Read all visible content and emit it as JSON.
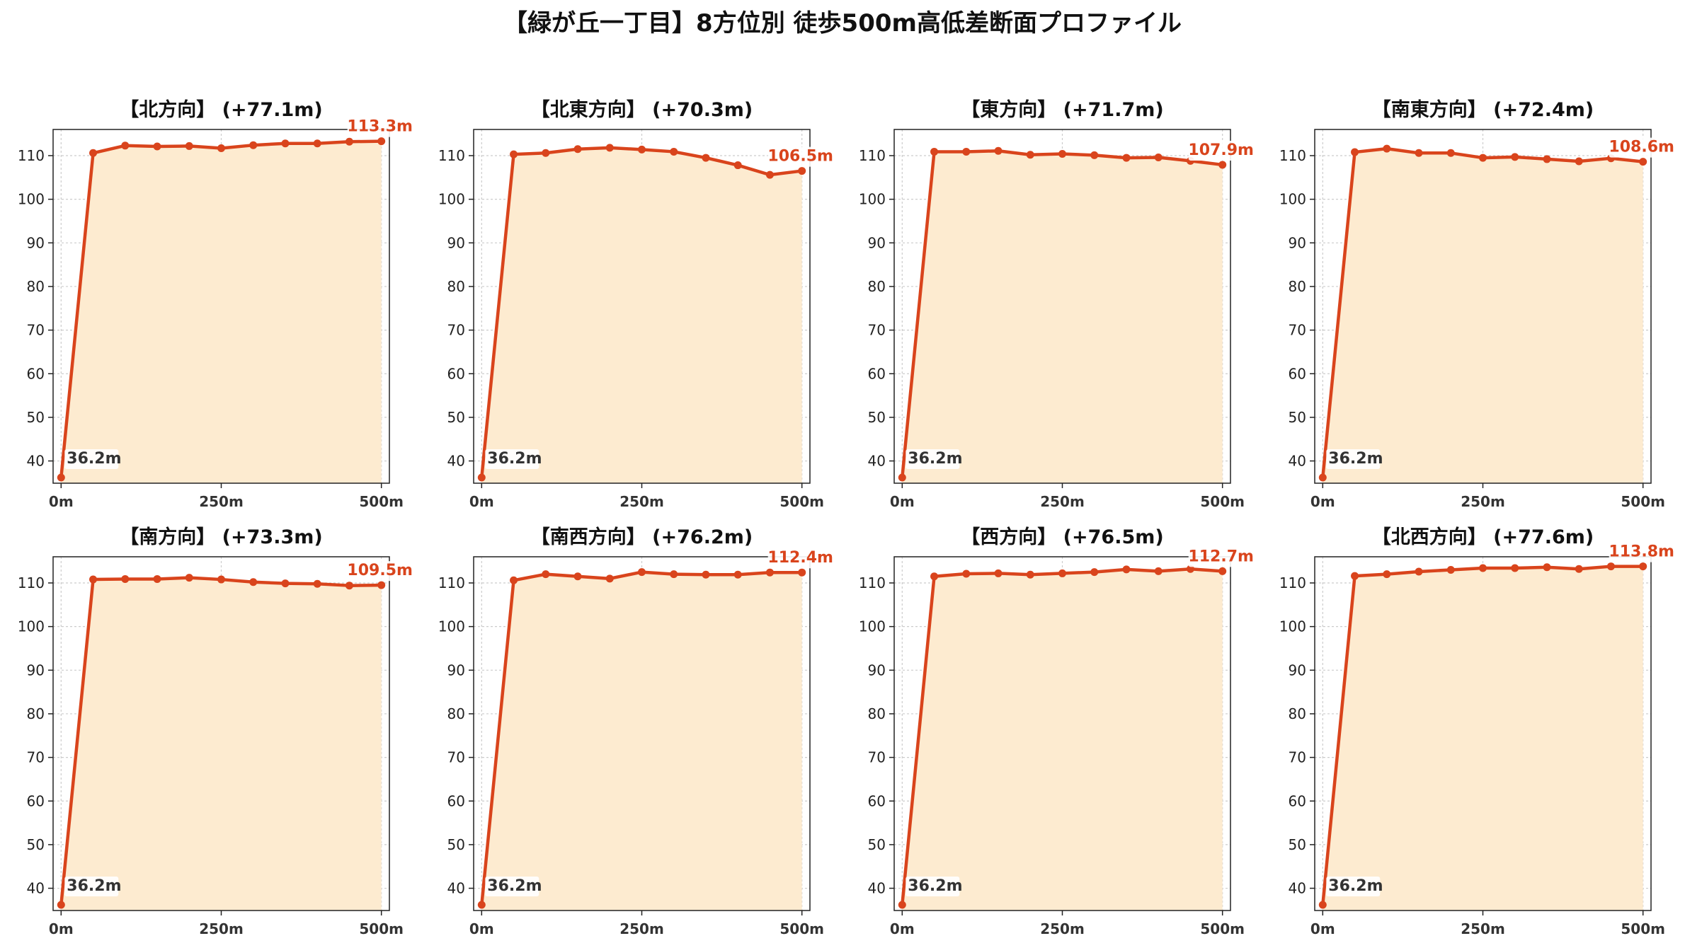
{
  "colors": {
    "line": "#d9441c",
    "fill": "#fdebd0",
    "grid": "#cccccc",
    "label_bg": "#ffffff"
  },
  "chart_data": {
    "type": "line",
    "title": "【緑が丘一丁目】8方位別 徒歩500m高低差断面プロファイル",
    "grid": true,
    "ylim": [
      34.9,
      116
    ],
    "xlim": [
      -12.5,
      512.5
    ],
    "yticks": [
      40,
      50,
      60,
      70,
      80,
      90,
      100,
      110
    ],
    "ytick_labels": [
      "40",
      "50",
      "60",
      "70",
      "80",
      "90",
      "100",
      "110"
    ],
    "xticks": [
      0,
      250,
      500
    ],
    "xtick_labels": [
      "0m",
      "250m",
      "500m"
    ],
    "x": [
      0,
      50,
      100,
      150,
      200,
      250,
      300,
      350,
      400,
      450,
      500
    ],
    "start_label": "36.2m",
    "panels": [
      {
        "title": "【北方向】 (+77.1m)",
        "end_label": "113.3m",
        "values": [
          36.2,
          110.6,
          112.3,
          112.1,
          112.2,
          111.7,
          112.4,
          112.8,
          112.8,
          113.2,
          113.3
        ]
      },
      {
        "title": "【北東方向】 (+70.3m)",
        "end_label": "106.5m",
        "values": [
          36.2,
          110.3,
          110.6,
          111.5,
          111.8,
          111.4,
          110.9,
          109.5,
          107.8,
          105.6,
          106.5
        ]
      },
      {
        "title": "【東方向】 (+71.7m)",
        "end_label": "107.9m",
        "values": [
          36.2,
          110.9,
          110.9,
          111.1,
          110.2,
          110.4,
          110.1,
          109.5,
          109.6,
          108.8,
          107.9
        ]
      },
      {
        "title": "【南東方向】 (+72.4m)",
        "end_label": "108.6m",
        "values": [
          36.2,
          110.8,
          111.6,
          110.6,
          110.6,
          109.5,
          109.7,
          109.2,
          108.7,
          109.4,
          108.6
        ]
      },
      {
        "title": "【南方向】 (+73.3m)",
        "end_label": "109.5m",
        "values": [
          36.2,
          110.8,
          110.9,
          110.9,
          111.2,
          110.8,
          110.2,
          109.9,
          109.8,
          109.4,
          109.5
        ]
      },
      {
        "title": "【南西方向】 (+76.2m)",
        "end_label": "112.4m",
        "values": [
          36.2,
          110.6,
          112.0,
          111.5,
          111.0,
          112.5,
          112.0,
          111.9,
          111.9,
          112.4,
          112.4
        ]
      },
      {
        "title": "【西方向】 (+76.5m)",
        "end_label": "112.7m",
        "values": [
          36.2,
          111.5,
          112.1,
          112.2,
          111.9,
          112.2,
          112.5,
          113.1,
          112.7,
          113.2,
          112.7
        ]
      },
      {
        "title": "【北西方向】 (+77.6m)",
        "end_label": "113.8m",
        "values": [
          36.2,
          111.6,
          112.0,
          112.6,
          113.0,
          113.4,
          113.4,
          113.6,
          113.2,
          113.8,
          113.8
        ]
      }
    ]
  }
}
